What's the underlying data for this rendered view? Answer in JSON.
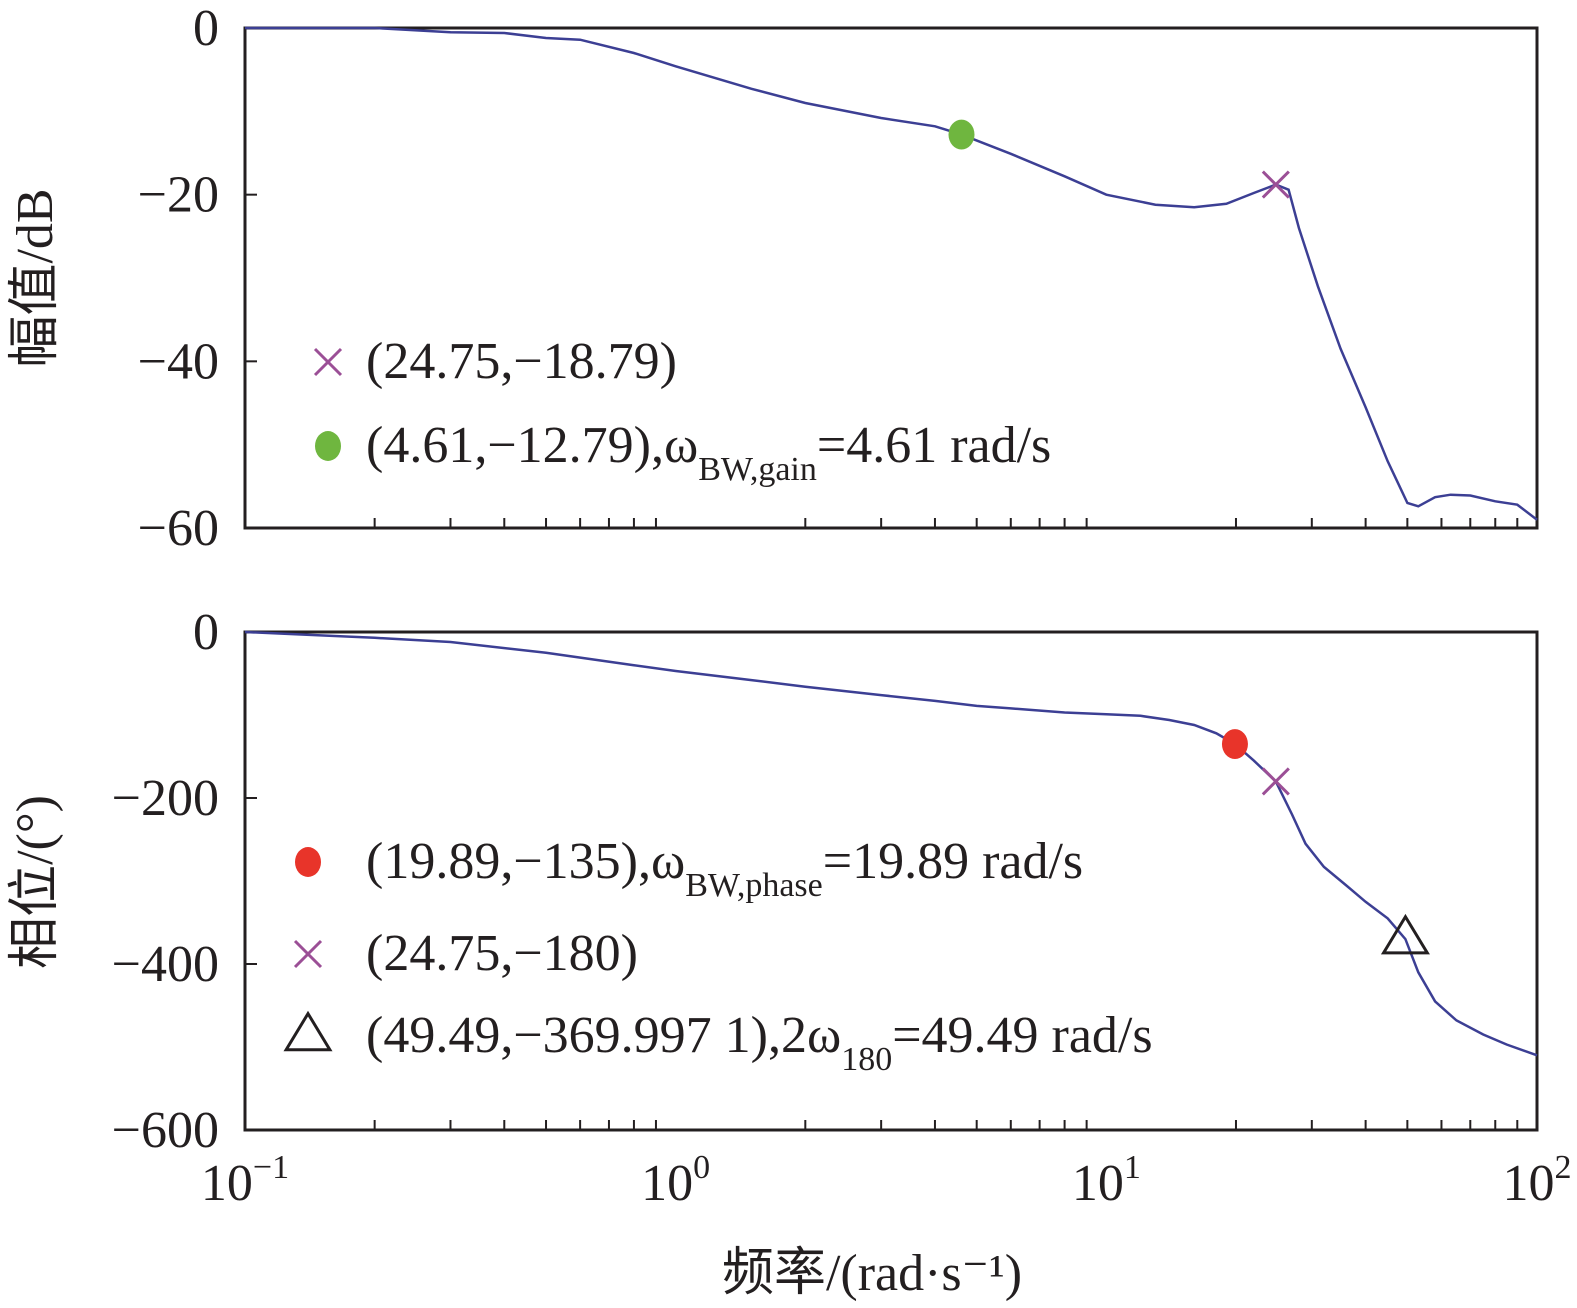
{
  "chart_data": [
    {
      "type": "line",
      "panel": "magnitude",
      "ylabel": "幅值/dB",
      "xscale": "log",
      "xlim": [
        0.1,
        100
      ],
      "ylim": [
        -60,
        0
      ],
      "yticks": [
        0,
        -20,
        -40,
        -60
      ],
      "ytick_labels": [
        "0",
        "−20",
        "−40",
        "−60"
      ],
      "series": [
        {
          "name": "magnitude",
          "color": "#3c3f94",
          "x": [
            0.1,
            0.2,
            0.3,
            0.4,
            0.5,
            0.6,
            0.8,
            1.0,
            1.5,
            2.0,
            3.0,
            4.0,
            4.61,
            6.0,
            8.0,
            10.0,
            13.0,
            16.0,
            19.0,
            22.0,
            24.75,
            26.5,
            28.0,
            31.0,
            35.0,
            40.0,
            45.0,
            50.0,
            53.0,
            58.0,
            63.0,
            70.0,
            80.0,
            90.0,
            100.0
          ],
          "y": [
            0,
            0,
            -0.5,
            -0.6,
            -1.2,
            -1.4,
            -3.0,
            -4.6,
            -7.3,
            -9.0,
            -10.8,
            -11.8,
            -12.79,
            -15.1,
            -17.8,
            -20.0,
            -21.2,
            -21.5,
            -21.1,
            -19.8,
            -18.79,
            -19.4,
            -24.0,
            -31.0,
            -38.5,
            -45.5,
            -52.0,
            -57.0,
            -57.4,
            -56.3,
            -56.0,
            -56.1,
            -56.8,
            -57.2,
            -59.0
          ]
        }
      ],
      "markers": [
        {
          "shape": "x",
          "color": "#9b4f96",
          "x": 24.75,
          "y": -18.79,
          "label": "(24.75,−18.79)"
        },
        {
          "shape": "circle",
          "color": "#6fb63f",
          "x": 4.61,
          "y": -12.79,
          "label": "(4.61,−12.79),ω",
          "sub": "BW,gain",
          "label_after": "=4.61 rad/s"
        }
      ]
    },
    {
      "type": "line",
      "panel": "phase",
      "ylabel": "相位/(°)",
      "xlabel": "频率/(rad·s⁻¹)",
      "xscale": "log",
      "xlim": [
        0.1,
        100
      ],
      "ylim": [
        -600,
        0
      ],
      "yticks": [
        0,
        -200,
        -400,
        -600
      ],
      "ytick_labels": [
        "0",
        "−200",
        "−400",
        "−600"
      ],
      "xtick_labels": [
        {
          "base": "10",
          "exp": "−1"
        },
        {
          "base": "10",
          "exp": "0"
        },
        {
          "base": "10",
          "exp": "1"
        },
        {
          "base": "10",
          "exp": "2"
        }
      ],
      "series": [
        {
          "name": "phase",
          "color": "#3c3f94",
          "x": [
            0.1,
            0.2,
            0.3,
            0.5,
            0.8,
            1.0,
            1.5,
            2.0,
            3.0,
            4.0,
            5.0,
            6.0,
            8.0,
            10.0,
            12.0,
            14.0,
            16.0,
            18.0,
            19.89,
            22.0,
            24.75,
            27.0,
            29.0,
            32.0,
            36.0,
            40.0,
            45.0,
            49.49,
            53.0,
            58.0,
            65.0,
            75.0,
            85.0,
            100.0
          ],
          "y": [
            0,
            -7,
            -12,
            -25,
            -40,
            -47,
            -58,
            -66,
            -76,
            -83,
            -89,
            -92,
            -97,
            -99,
            -101,
            -106,
            -112,
            -122,
            -135,
            -155,
            -180,
            -220,
            -255,
            -283,
            -305,
            -325,
            -345,
            -369.9971,
            -410,
            -445,
            -468,
            -485,
            -497,
            -510
          ]
        }
      ],
      "markers": [
        {
          "shape": "circle",
          "color": "#e8342a",
          "x": 19.89,
          "y": -135,
          "label": "(19.89,−135),ω",
          "sub": "BW,phase",
          "label_after": "=19.89 rad/s"
        },
        {
          "shape": "x",
          "color": "#9b4f96",
          "x": 24.75,
          "y": -180,
          "label": "(24.75,−180)"
        },
        {
          "shape": "triangle",
          "color": "#231f20",
          "x": 49.49,
          "y": -369.9971,
          "label": "(49.49,−369.997 1),2ω",
          "sub": "180",
          "label_after": "=49.49 rad/s"
        }
      ]
    }
  ]
}
